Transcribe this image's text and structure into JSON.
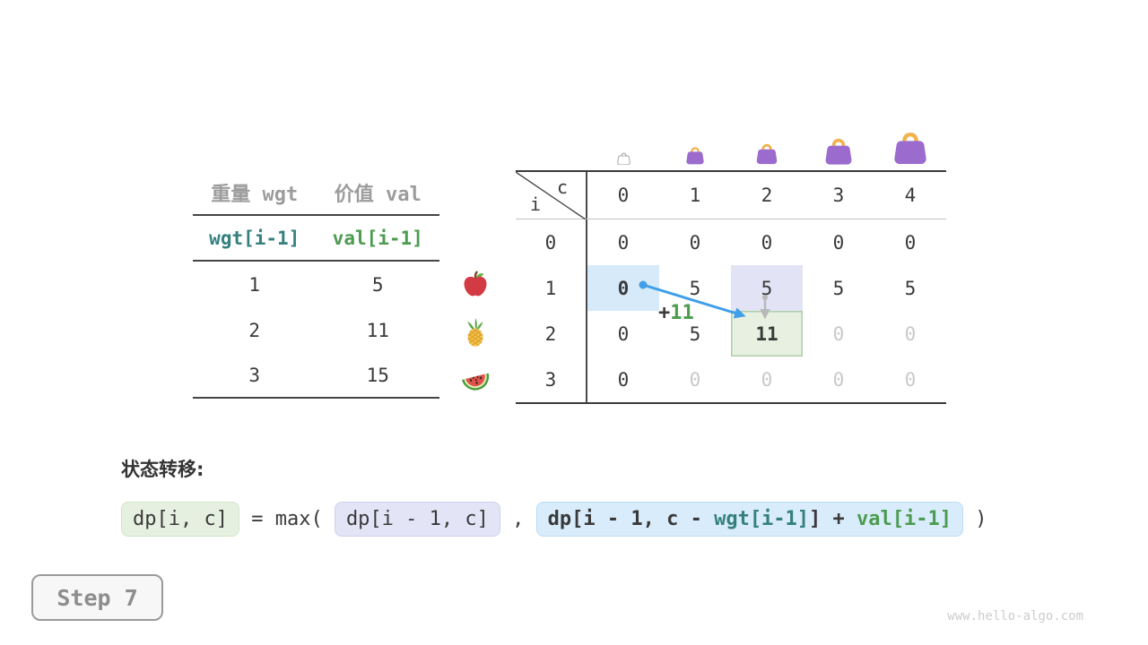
{
  "colors": {
    "accent_blue": "#3f9fe8",
    "teal": "#35807f",
    "green": "#4d9b50",
    "gray_header_text": "#9c9c9c",
    "dark_text": "#3a3a3a",
    "muted_text": "#c9c9c9",
    "cell_blue": "#d6eafa",
    "cell_lavender": "#e3e3f6",
    "cell_green": "#e7f0e1",
    "cell_green_border": "#aecfaa",
    "bag_body": "#9b6bce",
    "bag_handle": "#f2b24e",
    "bag_empty_outline": "#ababab",
    "compare_arrow_gray": "#b8b8b8"
  },
  "item_table": {
    "headers": [
      "重量 wgt",
      "价值 val"
    ],
    "subheaders": [
      {
        "text": "wgt[i-1]",
        "color": "teal"
      },
      {
        "text": "val[i-1]",
        "color": "green"
      }
    ],
    "rows": [
      {
        "wgt": "1",
        "val": "5",
        "fruit": "apple-icon"
      },
      {
        "wgt": "2",
        "val": "11",
        "fruit": "pineapple-icon"
      },
      {
        "wgt": "3",
        "val": "15",
        "fruit": "watermelon-icon"
      }
    ]
  },
  "dp_table": {
    "corner_top": "c",
    "corner_side": "i",
    "col_headers": [
      "0",
      "1",
      "2",
      "3",
      "4"
    ],
    "rows": [
      {
        "label": "0",
        "cells": [
          {
            "v": "0"
          },
          {
            "v": "0"
          },
          {
            "v": "0"
          },
          {
            "v": "0"
          },
          {
            "v": "0"
          }
        ]
      },
      {
        "label": "1",
        "cells": [
          {
            "v": "0",
            "hl": "blue",
            "bold": true
          },
          {
            "v": "5"
          },
          {
            "v": "5",
            "hl": "lavender"
          },
          {
            "v": "5"
          },
          {
            "v": "5"
          }
        ]
      },
      {
        "label": "2",
        "cells": [
          {
            "v": "0"
          },
          {
            "v": "5"
          },
          {
            "v": "11",
            "hl": "green",
            "bold": true
          },
          {
            "v": "0",
            "muted": true
          },
          {
            "v": "0",
            "muted": true
          }
        ]
      },
      {
        "label": "3",
        "cells": [
          {
            "v": "0"
          },
          {
            "v": "0",
            "muted": true
          },
          {
            "v": "0",
            "muted": true
          },
          {
            "v": "0",
            "muted": true
          },
          {
            "v": "0",
            "muted": true
          }
        ]
      }
    ],
    "bags": [
      {
        "capacity": "0",
        "variant": "empty",
        "size": 17
      },
      {
        "capacity": "1",
        "variant": "filled",
        "size": 24
      },
      {
        "capacity": "2",
        "variant": "filled",
        "size": 28
      },
      {
        "capacity": "3",
        "variant": "filled",
        "size": 36
      },
      {
        "capacity": "4",
        "variant": "filled",
        "size": 44
      }
    ]
  },
  "annotation": {
    "plus": "+",
    "value": "11"
  },
  "transition": {
    "label": "状态转移:",
    "formula": [
      {
        "text": "dp[i, c]",
        "box": "green"
      },
      {
        "text": " = max( "
      },
      {
        "text": "dp[i - 1, c]",
        "box": "lavender"
      },
      {
        "text": " , "
      },
      {
        "box": "blue",
        "bold": true,
        "segments": [
          {
            "t": "dp[i - 1, c - "
          },
          {
            "t": "wgt[i-1]",
            "color": "teal"
          },
          {
            "t": "]"
          },
          {
            "t": " + "
          },
          {
            "t": "val[i-1]",
            "color": "green"
          }
        ]
      },
      {
        "text": " )"
      }
    ]
  },
  "step_button": {
    "label": "Step 7"
  },
  "watermark": "www.hello-algo.com"
}
